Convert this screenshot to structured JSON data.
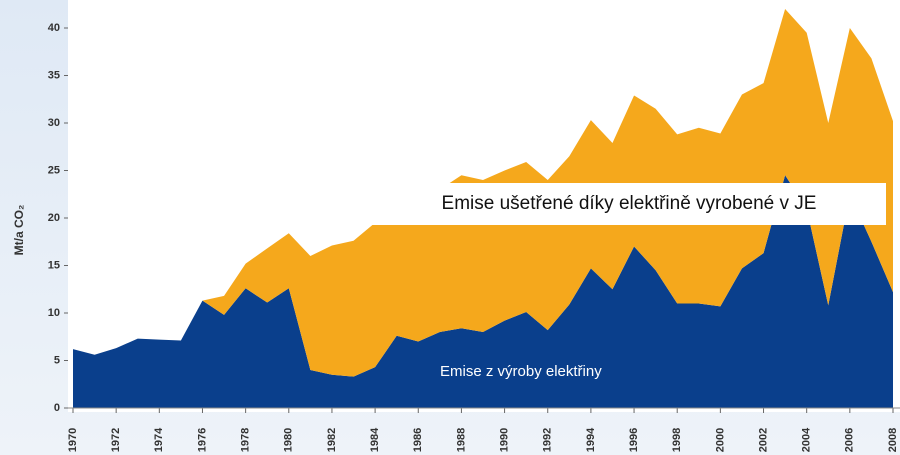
{
  "chart_data": {
    "type": "stacked-area",
    "y_label": "Mt/a CO₂",
    "x": [
      1970,
      1971,
      1972,
      1973,
      1974,
      1975,
      1976,
      1977,
      1978,
      1979,
      1980,
      1981,
      1982,
      1983,
      1984,
      1985,
      1986,
      1987,
      1988,
      1989,
      1990,
      1991,
      1992,
      1993,
      1994,
      1995,
      1996,
      1997,
      1998,
      1999,
      2000,
      2001,
      2002,
      2003,
      2004,
      2005,
      2006,
      2007,
      2008
    ],
    "series": [
      {
        "name": "Emise z výroby elektřiny",
        "color": "#0a3f8c",
        "values": [
          6.2,
          5.6,
          6.3,
          7.3,
          7.2,
          7.1,
          11.3,
          9.8,
          12.6,
          11.1,
          12.6,
          4.0,
          3.5,
          3.3,
          4.3,
          7.6,
          7.0,
          8.0,
          8.4,
          8.0,
          9.2,
          10.1,
          8.2,
          10.9,
          14.7,
          12.5,
          17.0,
          14.5,
          11.0,
          11.0,
          10.7,
          14.7,
          16.3,
          24.5,
          21.0,
          10.8,
          22.5,
          17.5,
          12.2
        ]
      },
      {
        "name": "Emise ušetřené díky elektřině vyrobené v JE",
        "color": "#f5a81c",
        "values": [
          0,
          0,
          0,
          0,
          0,
          0,
          0,
          2.0,
          2.6,
          5.7,
          5.8,
          12.0,
          13.6,
          14.3,
          15.2,
          12.9,
          14.5,
          15.0,
          16.1,
          16.0,
          15.8,
          15.8,
          15.8,
          15.6,
          15.6,
          15.4,
          15.9,
          17.0,
          17.8,
          18.5,
          18.2,
          18.3,
          17.9,
          17.5,
          18.5,
          19.2,
          17.5,
          19.3,
          18.0
        ]
      }
    ],
    "xlim": [
      1970,
      2008
    ],
    "xticks": [
      1970,
      1972,
      1974,
      1976,
      1978,
      1980,
      1982,
      1984,
      1986,
      1988,
      1990,
      1992,
      1994,
      1996,
      1998,
      2000,
      2002,
      2004,
      2006,
      2008
    ],
    "ylim": [
      0,
      43
    ],
    "yticks": [
      0,
      5,
      10,
      15,
      20,
      25,
      30,
      35,
      40
    ]
  }
}
